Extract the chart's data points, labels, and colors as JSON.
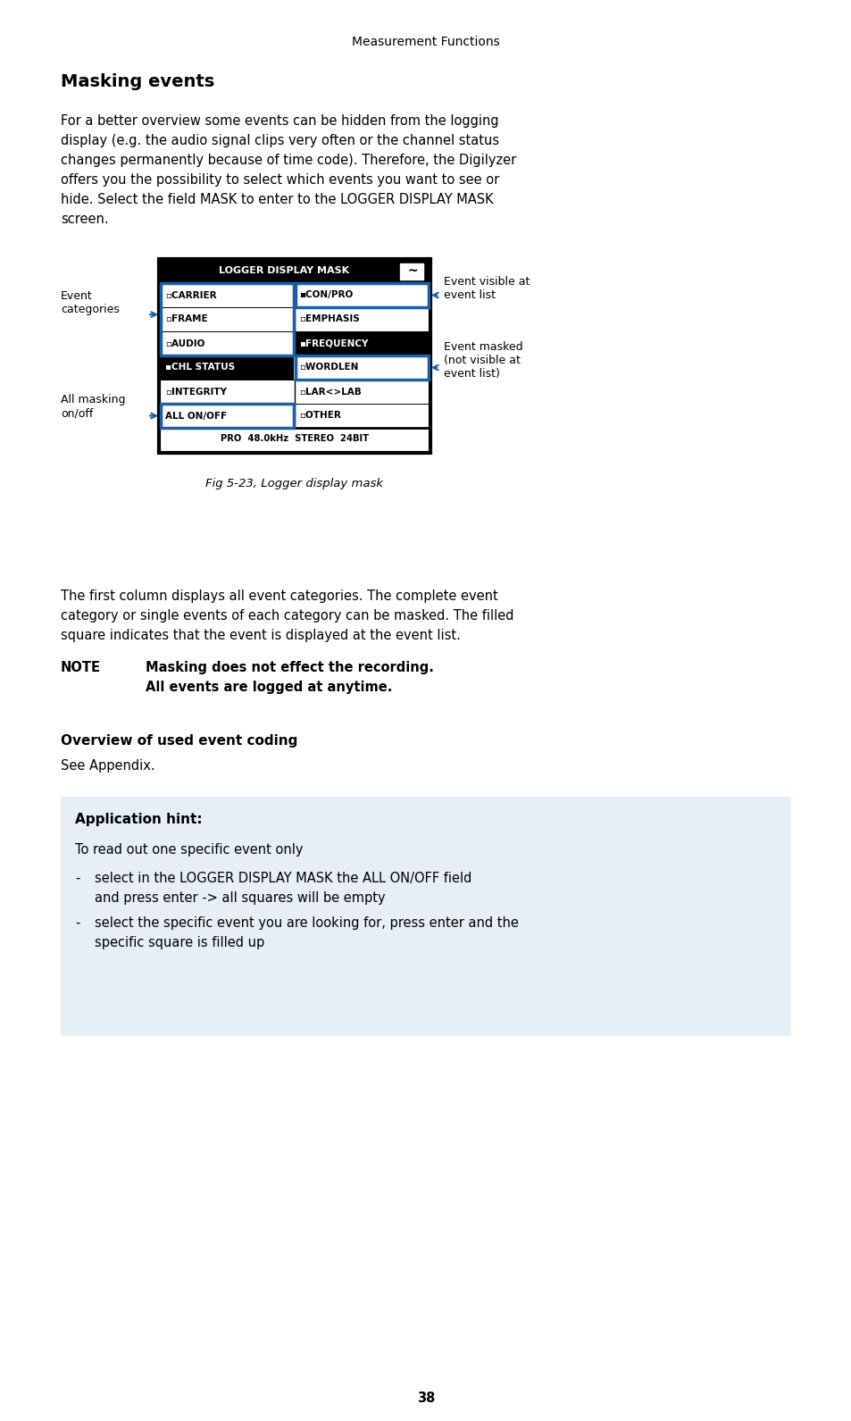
{
  "page_bg": "#ffffff",
  "header_text": "Measurement Functions",
  "title": "Masking events",
  "fig_caption": "Fig 5-23, Logger display mask",
  "body_para2_line1": "The first column displays all event categories. The complete event",
  "body_para2_line2": "category or single events of each category can be masked. The filled",
  "body_para2_line3": "square indicates that the event is displayed at the event list.",
  "note_label": "NOTE",
  "note_text1": "Masking does not effect the recording.",
  "note_text2": "All events are logged at anytime.",
  "subheading": "Overview of used event coding",
  "sub_body": "See Appendix.",
  "hint_title": "Application hint:",
  "hint_intro": "To read out one specific event only",
  "hint_bullet1a": "select in the LOGGER DISPLAY MASK the ALL ON/OFF field",
  "hint_bullet1b": "and press enter -> all squares will be empty",
  "hint_bullet2a": "select the specific event you are looking for, press enter and the",
  "hint_bullet2b": "specific square is filled up",
  "page_number": "38",
  "hint_bg": "#e8eef5",
  "label_event_categories": "Event\ncategories",
  "label_all_masking": "All masking\non/off",
  "label_event_visible": "Event visible at\nevent list",
  "label_event_masked": "Event masked\n(not visible at\nevent list)",
  "display_bottom": "PRO  48.0kHz  STEREO  24BIT",
  "blue_color": "#1a5fa8"
}
